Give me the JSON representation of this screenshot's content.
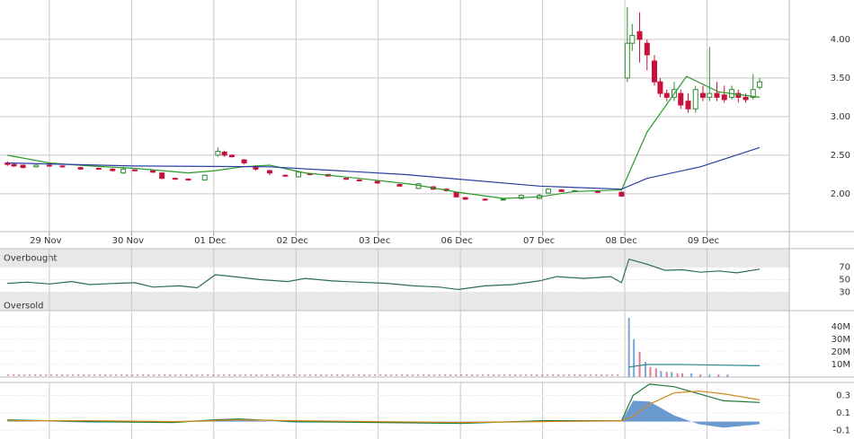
{
  "chart_data": [
    {
      "type": "candlestick",
      "xlim": [
        -0.6,
        9
      ],
      "xticks": [
        {
          "value": 0,
          "label": "29 Nov"
        },
        {
          "value": 1,
          "label": "30 Nov"
        },
        {
          "value": 2,
          "label": "01 Dec"
        },
        {
          "value": 3,
          "label": "02 Dec"
        },
        {
          "value": 4,
          "label": "03 Dec"
        },
        {
          "value": 5,
          "label": "06 Dec"
        },
        {
          "value": 6,
          "label": "07 Dec"
        },
        {
          "value": 7,
          "label": "08 Dec"
        },
        {
          "value": 8,
          "label": "09 Dec"
        }
      ],
      "ylim": [
        1.51,
        4.51
      ],
      "yticks": [
        {
          "value": 2,
          "label": "2.00"
        },
        {
          "value": 2.5,
          "label": "2.50"
        },
        {
          "value": 3,
          "label": "3.00"
        },
        {
          "value": 3.5,
          "label": "3.50"
        },
        {
          "value": 4,
          "label": "4.00"
        }
      ],
      "grid": true,
      "up_color": "#2e8b2e",
      "down_color": "#c8103c",
      "x": [
        -0.51,
        -0.43,
        -0.32,
        -0.16,
        0,
        0.16,
        0.38,
        0.6,
        0.77,
        0.9,
        1.04,
        1.26,
        1.37,
        1.53,
        1.69,
        1.89,
        2.05,
        2.13,
        2.22,
        2.37,
        2.51,
        2.68,
        2.87,
        3.03,
        3.17,
        3.39,
        3.61,
        3.77,
        3.99,
        4.26,
        4.49,
        4.67,
        4.83,
        4.95,
        5.06,
        5.3,
        5.52,
        5.74,
        5.96,
        6.07,
        6.23,
        6.39,
        6.67,
        6.96,
        7.03,
        7.09,
        7.18,
        7.27,
        7.36,
        7.43,
        7.51,
        7.6,
        7.68,
        7.77,
        7.86,
        7.95,
        8.03,
        8.12,
        8.21,
        8.3,
        8.38,
        8.47,
        8.56,
        8.64
      ],
      "open": [
        2.4,
        2.38,
        2.37,
        2.35,
        2.37,
        2.36,
        2.34,
        2.33,
        2.32,
        2.27,
        2.31,
        2.3,
        2.27,
        2.2,
        2.19,
        2.18,
        2.5,
        2.54,
        2.5,
        2.44,
        2.36,
        2.3,
        2.24,
        2.22,
        2.26,
        2.25,
        2.2,
        2.18,
        2.16,
        2.12,
        2.07,
        2.09,
        2.06,
        2.02,
        1.95,
        1.93,
        1.92,
        1.94,
        1.94,
        2.01,
        2.05,
        2.03,
        2.03,
        2.02,
        3.5,
        3.95,
        4.1,
        3.95,
        3.72,
        3.45,
        3.3,
        3.25,
        3.3,
        3.2,
        3.1,
        3.3,
        3.25,
        3.3,
        3.28,
        3.25,
        3.3,
        3.25,
        3.25,
        3.38
      ],
      "high": [
        2.42,
        2.4,
        2.38,
        2.38,
        2.38,
        2.37,
        2.35,
        2.34,
        2.33,
        2.35,
        2.32,
        2.31,
        2.28,
        2.21,
        2.2,
        2.25,
        2.6,
        2.56,
        2.51,
        2.45,
        2.37,
        2.31,
        2.25,
        2.29,
        2.27,
        2.26,
        2.21,
        2.19,
        2.17,
        2.13,
        2.14,
        2.1,
        2.07,
        2.03,
        1.96,
        1.94,
        1.94,
        1.99,
        2.0,
        2.07,
        2.06,
        2.05,
        2.04,
        2.03,
        4.42,
        4.2,
        4.35,
        4.0,
        3.8,
        3.5,
        3.35,
        3.45,
        3.35,
        3.3,
        3.4,
        3.4,
        3.9,
        3.45,
        3.4,
        3.4,
        3.35,
        3.3,
        3.55,
        3.5
      ],
      "low": [
        2.36,
        2.35,
        2.33,
        2.34,
        2.35,
        2.34,
        2.31,
        2.31,
        2.29,
        2.26,
        2.29,
        2.27,
        2.19,
        2.18,
        2.17,
        2.17,
        2.48,
        2.48,
        2.47,
        2.38,
        2.3,
        2.24,
        2.22,
        2.21,
        2.24,
        2.22,
        2.18,
        2.16,
        2.13,
        2.09,
        2.06,
        2.05,
        2.03,
        1.95,
        1.92,
        1.91,
        1.91,
        1.93,
        1.93,
        2.0,
        2.02,
        2.02,
        2.01,
        1.96,
        3.45,
        3.85,
        3.7,
        3.6,
        3.4,
        3.25,
        3.2,
        3.2,
        3.1,
        3.05,
        3.05,
        3.2,
        3.2,
        3.2,
        3.18,
        3.22,
        3.18,
        3.18,
        3.22,
        3.35
      ],
      "close": [
        2.38,
        2.36,
        2.34,
        2.37,
        2.36,
        2.35,
        2.32,
        2.32,
        2.3,
        2.32,
        2.3,
        2.28,
        2.2,
        2.19,
        2.18,
        2.24,
        2.55,
        2.5,
        2.48,
        2.4,
        2.32,
        2.27,
        2.23,
        2.28,
        2.25,
        2.23,
        2.19,
        2.17,
        2.14,
        2.1,
        2.13,
        2.06,
        2.04,
        1.96,
        1.93,
        1.92,
        1.93,
        1.98,
        1.98,
        2.06,
        2.03,
        2.04,
        2.02,
        1.97,
        3.95,
        4.05,
        4.0,
        3.8,
        3.45,
        3.3,
        3.25,
        3.35,
        3.15,
        3.1,
        3.35,
        3.25,
        3.3,
        3.25,
        3.22,
        3.35,
        3.25,
        3.22,
        3.35,
        3.45
      ],
      "lines": [
        {
          "color": "#2a9a2a",
          "x": [
            -0.51,
            0,
            0.49,
            1.04,
            1.69,
            2.02,
            2.35,
            2.68,
            3.11,
            3.77,
            4.43,
            4.97,
            5.52,
            5.96,
            6.39,
            6.96,
            7.27,
            7.75,
            8.14,
            8.64
          ],
          "values": [
            2.5,
            2.4,
            2.36,
            2.33,
            2.27,
            2.3,
            2.35,
            2.37,
            2.27,
            2.2,
            2.12,
            2.02,
            1.94,
            1.96,
            2.03,
            2.05,
            2.8,
            3.52,
            3.32,
            3.25
          ]
        },
        {
          "color": "#2a3fa0",
          "x": [
            -0.51,
            1.04,
            2.68,
            4.32,
            5.96,
            6.96,
            7.27,
            7.92,
            8.64
          ],
          "values": [
            2.4,
            2.36,
            2.35,
            2.25,
            2.1,
            2.06,
            2.2,
            2.35,
            2.6
          ]
        }
      ]
    },
    {
      "type": "line",
      "ylim": [
        0,
        100
      ],
      "yticks": [
        30,
        50,
        70
      ],
      "bands": [
        {
          "label": "Overbought",
          "from": 70,
          "to": 100
        },
        {
          "label": "Oversold",
          "from": 0,
          "to": 30
        }
      ],
      "x": [
        -0.51,
        -0.27,
        0,
        0.27,
        0.49,
        0.82,
        1.04,
        1.26,
        1.58,
        1.8,
        2.02,
        2.24,
        2.57,
        2.9,
        3.11,
        3.44,
        3.77,
        4.1,
        4.43,
        4.75,
        4.97,
        5.3,
        5.63,
        5.96,
        6.17,
        6.5,
        6.83,
        6.96,
        7.05,
        7.27,
        7.49,
        7.7,
        7.92,
        8.14,
        8.36,
        8.64
      ],
      "series": [
        {
          "color": "#2e6e4e",
          "values": [
            44,
            46,
            43,
            47,
            42,
            44,
            45,
            38,
            40,
            37,
            58,
            55,
            50,
            47,
            52,
            48,
            46,
            44,
            40,
            38,
            34,
            40,
            42,
            48,
            55,
            52,
            55,
            45,
            83,
            75,
            65,
            66,
            62,
            64,
            61,
            67
          ]
        }
      ]
    },
    {
      "type": "bar",
      "ylim": [
        0,
        52000000
      ],
      "yticks": [
        {
          "value": 10000000,
          "label": "10M"
        },
        {
          "value": 20000000,
          "label": "20M"
        },
        {
          "value": 30000000,
          "label": "30M"
        },
        {
          "value": 40000000,
          "label": "40M"
        }
      ],
      "x": [
        7.05,
        7.11,
        7.18,
        7.25,
        7.31,
        7.38,
        7.44,
        7.51,
        7.57,
        7.64,
        7.7,
        7.81,
        7.92,
        8.03,
        8.14,
        8.25
      ],
      "values": [
        47000000,
        30000000,
        20000000,
        12000000,
        8000000,
        7000000,
        5000000,
        4000000,
        4000000,
        3000000,
        3000000,
        3000000,
        2000000,
        2000000,
        2000000,
        2000000
      ],
      "colors": [
        "#7aa6d6",
        "#7aa6d6",
        "#e07a9a",
        "#7aa6d6",
        "#e07a9a",
        "#e07a9a",
        "#7aa6d6",
        "#e07a9a",
        "#7aa6d6",
        "#e07a9a",
        "#e07a9a",
        "#7aa6d6",
        "#e07a9a",
        "#7aa6d6",
        "#e07a9a",
        "#7aa6d6"
      ],
      "overlays": [
        {
          "color": "#2a8a8a",
          "x": [
            7.05,
            7.27,
            7.7,
            8.14,
            8.64
          ],
          "values": [
            8000000,
            10000000,
            10000000,
            9500000,
            9000000
          ]
        },
        {
          "color": "#e05a7a",
          "dashed": true,
          "x": [
            -0.51,
            6.96
          ],
          "values": [
            1500000,
            1500000
          ]
        }
      ]
    },
    {
      "type": "line",
      "ylim": [
        -0.2,
        0.45
      ],
      "yticks": [
        -0.1,
        0.1,
        0.3
      ],
      "x": [
        -0.51,
        0.5,
        1.5,
        2.0,
        2.3,
        3,
        4,
        5,
        6,
        6.96,
        7.1,
        7.3,
        7.6,
        7.9,
        8.2,
        8.64
      ],
      "series": [
        {
          "color": "#6a9ad0",
          "fill": true,
          "values": [
            0.01,
            -0.01,
            -0.01,
            0.02,
            0.02,
            -0.01,
            -0.01,
            -0.01,
            0.01,
            0.0,
            0.24,
            0.23,
            0.07,
            -0.03,
            -0.07,
            -0.03
          ]
        },
        {
          "color": "#1e7a3a",
          "values": [
            0.02,
            0.0,
            -0.01,
            0.02,
            0.03,
            0.0,
            -0.01,
            -0.02,
            0.01,
            0.01,
            0.3,
            0.43,
            0.4,
            0.32,
            0.24,
            0.22
          ]
        },
        {
          "color": "#d08a20",
          "values": [
            0.01,
            0.01,
            0,
            0.01,
            0.02,
            0.01,
            0,
            -0.01,
            0,
            0.01,
            0.06,
            0.2,
            0.33,
            0.35,
            0.32,
            0.25
          ]
        }
      ]
    }
  ]
}
